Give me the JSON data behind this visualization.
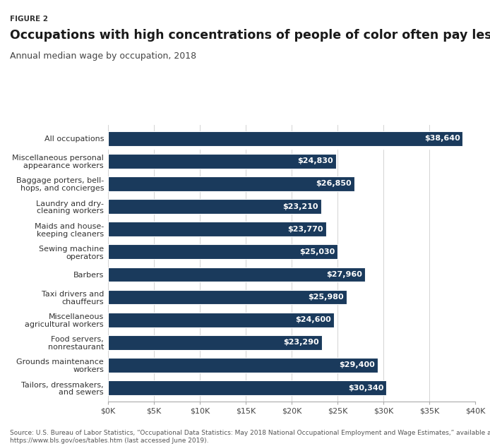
{
  "figure_label": "FIGURE 2",
  "title": "Occupations with high concentrations of people of color often pay less",
  "subtitle": "Annual median wage by occupation, 2018",
  "source": "Source: U.S. Bureau of Labor Statistics, “Occupational Data Statistics: May 2018 National Occupational Employment and Wage Estimates,” available at\nhttps://www.bls.gov/oes/tables.htm (last accessed June 2019).",
  "categories": [
    "Tailors, dressmakers,\nand sewers",
    "Grounds maintenance\nworkers",
    "Food servers,\nnonrestaurant",
    "Miscellaneous\nagricultural workers",
    "Taxi drivers and\nchauffeurs",
    "Barbers",
    "Sewing machine\noperators",
    "Maids and house-\nkeeping cleaners",
    "Laundry and dry-\ncleaning workers",
    "Baggage porters, bell-\nhops, and concierges",
    "Miscellaneous personal\nappearance workers",
    "All occupations"
  ],
  "values": [
    30340,
    29400,
    23290,
    24600,
    25980,
    27960,
    25030,
    23770,
    23210,
    26850,
    24830,
    38640
  ],
  "bar_color": "#1a3a5c",
  "label_color": "#ffffff",
  "xlim": [
    0,
    40000
  ],
  "xticks": [
    0,
    5000,
    10000,
    15000,
    20000,
    25000,
    30000,
    35000,
    40000
  ],
  "xtick_labels": [
    "$0K",
    "$5K",
    "$10K",
    "$15K",
    "$20K",
    "$25K",
    "$30K",
    "$35K",
    "$40K"
  ],
  "figsize": [
    6.94,
    6.32
  ],
  "dpi": 100
}
